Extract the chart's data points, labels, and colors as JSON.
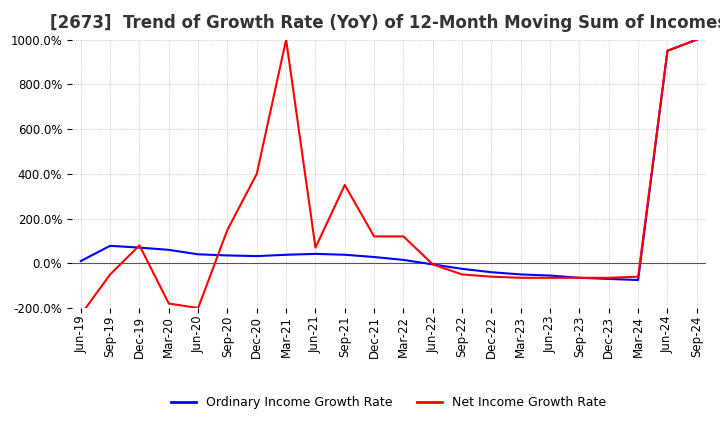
{
  "title": "[2673]  Trend of Growth Rate (YoY) of 12-Month Moving Sum of Incomes",
  "legend": [
    "Ordinary Income Growth Rate",
    "Net Income Growth Rate"
  ],
  "line_colors": [
    "blue",
    "red"
  ],
  "ylim": [
    -200,
    1000
  ],
  "yticks": [
    -200,
    0,
    200,
    400,
    600,
    800,
    1000
  ],
  "dates": [
    "Jun-19",
    "Sep-19",
    "Dec-19",
    "Mar-20",
    "Jun-20",
    "Sep-20",
    "Dec-20",
    "Mar-21",
    "Jun-21",
    "Sep-21",
    "Dec-21",
    "Mar-22",
    "Jun-22",
    "Sep-22",
    "Dec-22",
    "Mar-23",
    "Jun-23",
    "Sep-23",
    "Dec-23",
    "Mar-24",
    "Jun-24",
    "Sep-24"
  ],
  "ordinary_income": [
    10,
    78,
    70,
    60,
    40,
    35,
    32,
    38,
    42,
    38,
    28,
    15,
    -5,
    -25,
    -40,
    -50,
    -55,
    -65,
    -70,
    -75,
    950,
    1000
  ],
  "net_income": [
    -230,
    -50,
    80,
    -180,
    -200,
    150,
    400,
    1000,
    70,
    350,
    120,
    120,
    -5,
    -50,
    -60,
    -65,
    -65,
    -65,
    -65,
    -60,
    950,
    1000
  ],
  "background_color": "#ffffff",
  "grid_color": "#aaaaaa",
  "title_fontsize": 12,
  "tick_fontsize": 8.5
}
